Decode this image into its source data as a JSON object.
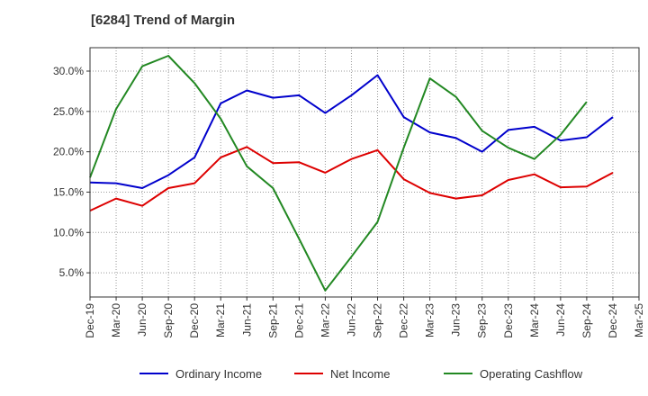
{
  "chart_data": {
    "type": "line",
    "title": "[6284]  Trend of Margin",
    "xlabel": "",
    "ylabel": "",
    "x": [
      "Dec-19",
      "Mar-20",
      "Jun-20",
      "Sep-20",
      "Dec-20",
      "Mar-21",
      "Jun-21",
      "Sep-21",
      "Dec-21",
      "Mar-22",
      "Jun-22",
      "Sep-22",
      "Dec-22",
      "Mar-23",
      "Jun-23",
      "Sep-23",
      "Dec-23",
      "Mar-24",
      "Jun-24",
      "Sep-24",
      "Dec-24",
      "Mar-25"
    ],
    "ylim": [
      2.0,
      32.9
    ],
    "yticks": [
      5.0,
      10.0,
      15.0,
      20.0,
      25.0,
      30.0
    ],
    "ytick_labels": [
      "5.0%",
      "10.0%",
      "15.0%",
      "20.0%",
      "25.0%",
      "30.0%"
    ],
    "grid": true,
    "legend_position": "bottom",
    "series": [
      {
        "name": "Ordinary Income",
        "color": "#0000cc",
        "values": [
          16.2,
          16.1,
          15.5,
          17.1,
          19.3,
          26.0,
          27.6,
          26.7,
          27.0,
          24.8,
          27.0,
          29.5,
          24.3,
          22.4,
          21.7,
          20.0,
          22.7,
          23.1,
          21.4,
          21.8,
          24.3,
          null
        ]
      },
      {
        "name": "Net Income",
        "color": "#dd0000",
        "values": [
          12.7,
          14.2,
          13.3,
          15.5,
          16.1,
          19.3,
          20.6,
          18.6,
          18.7,
          17.4,
          19.1,
          20.2,
          16.6,
          14.9,
          14.2,
          14.6,
          16.5,
          17.2,
          15.6,
          15.7,
          17.4,
          null
        ]
      },
      {
        "name": "Operating Cashflow",
        "color": "#228822",
        "values": [
          16.8,
          25.3,
          30.6,
          31.9,
          28.5,
          24.1,
          18.2,
          15.5,
          9.2,
          2.8,
          7.0,
          11.3,
          20.5,
          29.1,
          26.8,
          22.6,
          20.5,
          19.1,
          22.1,
          26.2,
          null,
          null
        ]
      }
    ]
  }
}
